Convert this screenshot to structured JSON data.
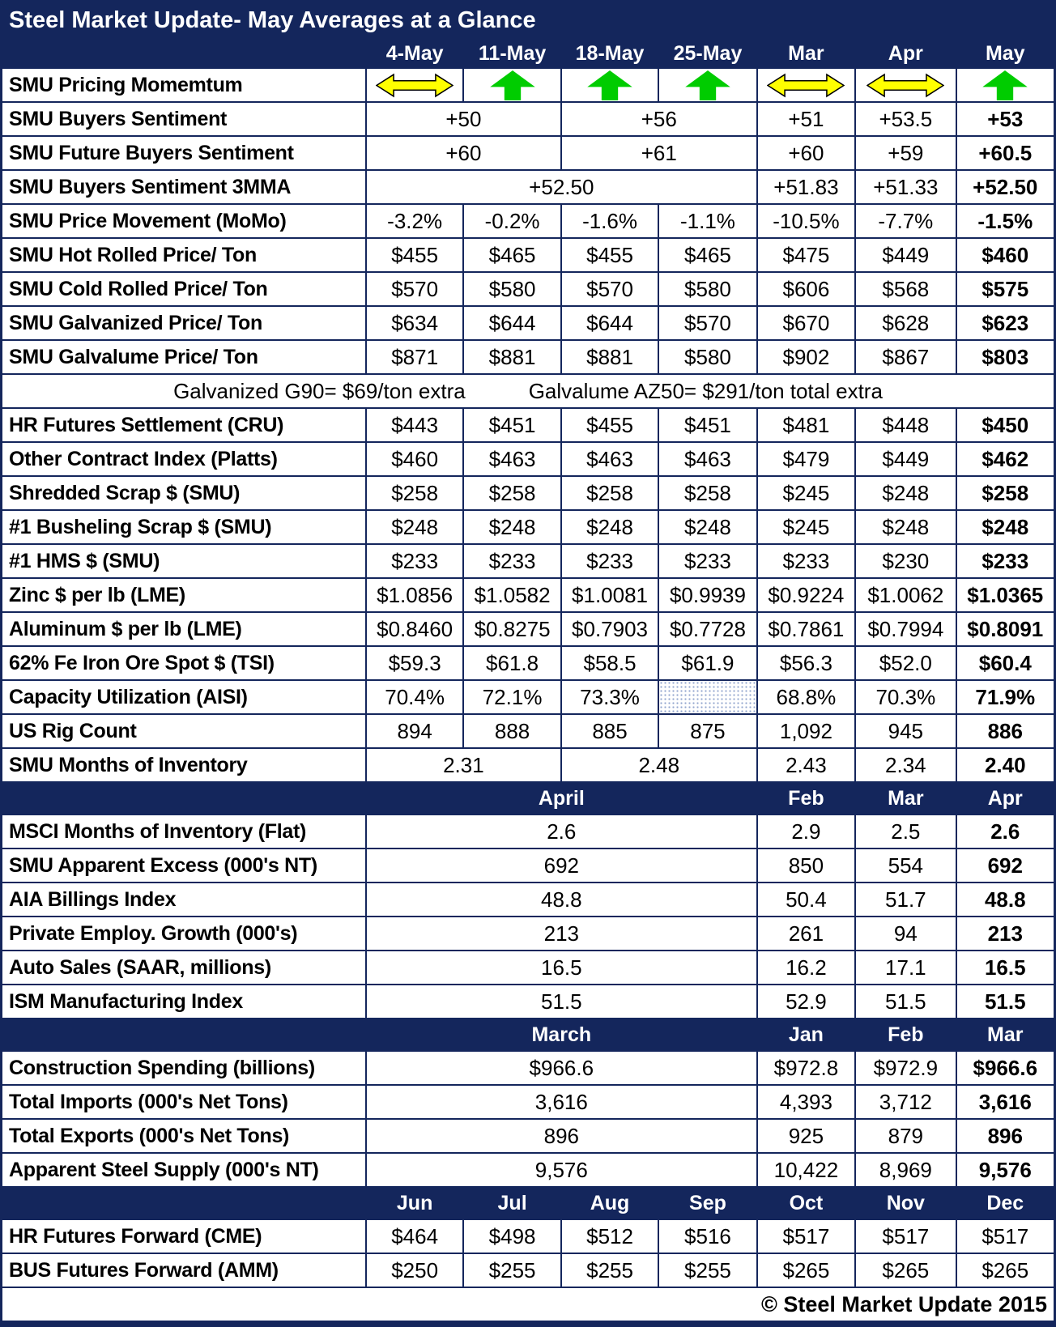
{
  "colors": {
    "navy": "#14265C",
    "green": "#00CC00",
    "yellow": "#FFFF00",
    "hatch_dot": "#8fa3cc",
    "text": "#000000",
    "header_text": "#FFFFFF"
  },
  "chart_data": {
    "type": "table",
    "title": "Steel Market Update- May Averages at a Glance",
    "footer": "© Steel Market Update 2015",
    "note_row": [
      "Galvanized G90= $69/ton extra",
      "Galvalume AZ50= $291/ton total extra"
    ],
    "arrow_legend": {
      "up": "green up arrow (rising)",
      "sideways": "yellow double-headed arrow (flat)"
    },
    "rows": [
      {
        "kind": "colheader",
        "cells": [
          {
            "v": "4-May"
          },
          {
            "v": "11-May"
          },
          {
            "v": "18-May"
          },
          {
            "v": "25-May"
          },
          {
            "v": "Mar"
          },
          {
            "v": "Apr"
          },
          {
            "v": "May"
          }
        ]
      },
      {
        "kind": "arrows",
        "label": "SMU Pricing Momemtum",
        "cells": [
          {
            "arrow": "sideways"
          },
          {
            "arrow": "up"
          },
          {
            "arrow": "up"
          },
          {
            "arrow": "up"
          },
          {
            "arrow": "sideways"
          },
          {
            "arrow": "sideways"
          },
          {
            "arrow": "up"
          }
        ]
      },
      {
        "kind": "data",
        "label": "SMU Buyers Sentiment",
        "cells": [
          {
            "v": "+50",
            "span": 2
          },
          {
            "v": "+56",
            "span": 2
          },
          {
            "v": "+51"
          },
          {
            "v": "+53.5"
          },
          {
            "v": "+53",
            "bold": true
          }
        ]
      },
      {
        "kind": "data",
        "label": "SMU Future Buyers Sentiment",
        "cells": [
          {
            "v": "+60",
            "span": 2
          },
          {
            "v": "+61",
            "span": 2
          },
          {
            "v": "+60"
          },
          {
            "v": "+59"
          },
          {
            "v": "+60.5",
            "bold": true
          }
        ]
      },
      {
        "kind": "data",
        "label": "SMU Buyers Sentiment 3MMA",
        "cells": [
          {
            "v": "+52.50",
            "span": 4
          },
          {
            "v": "+51.83"
          },
          {
            "v": "+51.33"
          },
          {
            "v": "+52.50",
            "bold": true
          }
        ]
      },
      {
        "kind": "data",
        "label": "SMU Price Movement (MoMo)",
        "cells": [
          {
            "v": "-3.2%"
          },
          {
            "v": "-0.2%"
          },
          {
            "v": "-1.6%"
          },
          {
            "v": "-1.1%"
          },
          {
            "v": "-10.5%"
          },
          {
            "v": "-7.7%"
          },
          {
            "v": "-1.5%",
            "bold": true
          }
        ]
      },
      {
        "kind": "data",
        "label": "SMU Hot Rolled Price/ Ton",
        "cells": [
          {
            "v": "$455"
          },
          {
            "v": "$465"
          },
          {
            "v": "$455"
          },
          {
            "v": "$465"
          },
          {
            "v": "$475"
          },
          {
            "v": "$449"
          },
          {
            "v": "$460",
            "bold": true
          }
        ]
      },
      {
        "kind": "data",
        "label": "SMU Cold Rolled Price/ Ton",
        "cells": [
          {
            "v": "$570"
          },
          {
            "v": "$580"
          },
          {
            "v": "$570"
          },
          {
            "v": "$580"
          },
          {
            "v": "$606"
          },
          {
            "v": "$568"
          },
          {
            "v": "$575",
            "bold": true
          }
        ]
      },
      {
        "kind": "data",
        "label": "SMU Galvanized Price/ Ton",
        "cells": [
          {
            "v": "$634"
          },
          {
            "v": "$644"
          },
          {
            "v": "$644"
          },
          {
            "v": "$570"
          },
          {
            "v": "$670"
          },
          {
            "v": "$628"
          },
          {
            "v": "$623",
            "bold": true
          }
        ]
      },
      {
        "kind": "data",
        "label": "SMU Galvalume Price/ Ton",
        "cells": [
          {
            "v": "$871"
          },
          {
            "v": "$881"
          },
          {
            "v": "$881"
          },
          {
            "v": "$580"
          },
          {
            "v": "$902"
          },
          {
            "v": "$867"
          },
          {
            "v": "$803",
            "bold": true
          }
        ]
      },
      {
        "kind": "note"
      },
      {
        "kind": "data",
        "label": "HR Futures Settlement (CRU)",
        "cells": [
          {
            "v": "$443"
          },
          {
            "v": "$451"
          },
          {
            "v": "$455"
          },
          {
            "v": "$451"
          },
          {
            "v": "$481"
          },
          {
            "v": "$448"
          },
          {
            "v": "$450",
            "bold": true
          }
        ]
      },
      {
        "kind": "data",
        "label": "Other Contract Index (Platts)",
        "cells": [
          {
            "v": "$460"
          },
          {
            "v": "$463"
          },
          {
            "v": "$463"
          },
          {
            "v": "$463"
          },
          {
            "v": "$479"
          },
          {
            "v": "$449"
          },
          {
            "v": "$462",
            "bold": true
          }
        ]
      },
      {
        "kind": "data",
        "label": "Shredded Scrap $ (SMU)",
        "cells": [
          {
            "v": "$258"
          },
          {
            "v": "$258"
          },
          {
            "v": "$258"
          },
          {
            "v": "$258"
          },
          {
            "v": "$245"
          },
          {
            "v": "$248"
          },
          {
            "v": "$258",
            "bold": true
          }
        ]
      },
      {
        "kind": "data",
        "label": "#1 Busheling Scrap $ (SMU)",
        "cells": [
          {
            "v": "$248"
          },
          {
            "v": "$248"
          },
          {
            "v": "$248"
          },
          {
            "v": "$248"
          },
          {
            "v": "$245"
          },
          {
            "v": "$248"
          },
          {
            "v": "$248",
            "bold": true
          }
        ]
      },
      {
        "kind": "data",
        "label": "#1 HMS $ (SMU)",
        "cells": [
          {
            "v": "$233"
          },
          {
            "v": "$233"
          },
          {
            "v": "$233"
          },
          {
            "v": "$233"
          },
          {
            "v": "$233"
          },
          {
            "v": "$230"
          },
          {
            "v": "$233",
            "bold": true
          }
        ]
      },
      {
        "kind": "data",
        "label": "Zinc $ per lb (LME)",
        "cells": [
          {
            "v": "$1.0856"
          },
          {
            "v": "$1.0582"
          },
          {
            "v": "$1.0081"
          },
          {
            "v": "$0.9939"
          },
          {
            "v": "$0.9224"
          },
          {
            "v": "$1.0062"
          },
          {
            "v": "$1.0365",
            "bold": true
          }
        ]
      },
      {
        "kind": "data",
        "label": "Aluminum $ per lb (LME)",
        "cells": [
          {
            "v": "$0.8460"
          },
          {
            "v": "$0.8275"
          },
          {
            "v": "$0.7903"
          },
          {
            "v": "$0.7728"
          },
          {
            "v": "$0.7861"
          },
          {
            "v": "$0.7994"
          },
          {
            "v": "$0.8091",
            "bold": true
          }
        ]
      },
      {
        "kind": "data",
        "label": "62% Fe Iron Ore Spot $ (TSI)",
        "cells": [
          {
            "v": "$59.3"
          },
          {
            "v": "$61.8"
          },
          {
            "v": "$58.5"
          },
          {
            "v": "$61.9"
          },
          {
            "v": "$56.3"
          },
          {
            "v": "$52.0"
          },
          {
            "v": "$60.4",
            "bold": true
          }
        ]
      },
      {
        "kind": "data",
        "label": "Capacity Utilization (AISI)",
        "cells": [
          {
            "v": "70.4%"
          },
          {
            "v": "72.1%"
          },
          {
            "v": "73.3%"
          },
          {
            "v": "",
            "hatch": true
          },
          {
            "v": "68.8%"
          },
          {
            "v": "70.3%"
          },
          {
            "v": "71.9%",
            "bold": true
          }
        ]
      },
      {
        "kind": "data",
        "label": "US Rig Count",
        "cells": [
          {
            "v": "894"
          },
          {
            "v": "888"
          },
          {
            "v": "885"
          },
          {
            "v": "875"
          },
          {
            "v": "1,092"
          },
          {
            "v": "945"
          },
          {
            "v": "886",
            "bold": true
          }
        ]
      },
      {
        "kind": "data",
        "label": "SMU Months of Inventory",
        "cells": [
          {
            "v": "2.31",
            "span": 2
          },
          {
            "v": "2.48",
            "span": 2
          },
          {
            "v": "2.43"
          },
          {
            "v": "2.34"
          },
          {
            "v": "2.40",
            "bold": true
          }
        ]
      },
      {
        "kind": "sectionheader",
        "cells": [
          {
            "v": "April",
            "span": 4
          },
          {
            "v": "Feb"
          },
          {
            "v": "Mar"
          },
          {
            "v": "Apr"
          }
        ]
      },
      {
        "kind": "data",
        "label": "MSCI Months of Inventory (Flat)",
        "cells": [
          {
            "v": "2.6",
            "span": 4
          },
          {
            "v": "2.9"
          },
          {
            "v": "2.5"
          },
          {
            "v": "2.6",
            "bold": true
          }
        ]
      },
      {
        "kind": "data",
        "label": "SMU Apparent Excess (000's NT)",
        "cells": [
          {
            "v": "692",
            "span": 4
          },
          {
            "v": "850"
          },
          {
            "v": "554"
          },
          {
            "v": "692",
            "bold": true
          }
        ]
      },
      {
        "kind": "data",
        "label": "AIA Billings Index",
        "cells": [
          {
            "v": "48.8",
            "span": 4
          },
          {
            "v": "50.4"
          },
          {
            "v": "51.7"
          },
          {
            "v": "48.8",
            "bold": true
          }
        ]
      },
      {
        "kind": "data",
        "label": "Private Employ. Growth (000's)",
        "cells": [
          {
            "v": "213",
            "span": 4
          },
          {
            "v": "261"
          },
          {
            "v": "94"
          },
          {
            "v": "213",
            "bold": true
          }
        ]
      },
      {
        "kind": "data",
        "label": "Auto Sales (SAAR, millions)",
        "cells": [
          {
            "v": "16.5",
            "span": 4
          },
          {
            "v": "16.2"
          },
          {
            "v": "17.1"
          },
          {
            "v": "16.5",
            "bold": true
          }
        ]
      },
      {
        "kind": "data",
        "label": "ISM Manufacturing Index",
        "cells": [
          {
            "v": "51.5",
            "span": 4
          },
          {
            "v": "52.9"
          },
          {
            "v": "51.5"
          },
          {
            "v": "51.5",
            "bold": true
          }
        ]
      },
      {
        "kind": "sectionheader",
        "cells": [
          {
            "v": "March",
            "span": 4
          },
          {
            "v": "Jan"
          },
          {
            "v": "Feb"
          },
          {
            "v": "Mar"
          }
        ]
      },
      {
        "kind": "data",
        "label": "Construction Spending (billions)",
        "cells": [
          {
            "v": "$966.6",
            "span": 4
          },
          {
            "v": "$972.8"
          },
          {
            "v": "$972.9"
          },
          {
            "v": "$966.6",
            "bold": true
          }
        ]
      },
      {
        "kind": "data",
        "label": "Total Imports (000's Net Tons)",
        "cells": [
          {
            "v": "3,616",
            "span": 4
          },
          {
            "v": "4,393"
          },
          {
            "v": "3,712"
          },
          {
            "v": "3,616",
            "bold": true
          }
        ]
      },
      {
        "kind": "data",
        "label": "Total Exports (000's Net Tons)",
        "cells": [
          {
            "v": "896",
            "span": 4
          },
          {
            "v": "925"
          },
          {
            "v": "879"
          },
          {
            "v": "896",
            "bold": true
          }
        ]
      },
      {
        "kind": "data",
        "label": "Apparent Steel Supply (000's NT)",
        "cells": [
          {
            "v": "9,576",
            "span": 4
          },
          {
            "v": "10,422"
          },
          {
            "v": "8,969"
          },
          {
            "v": "9,576",
            "bold": true
          }
        ]
      },
      {
        "kind": "sectionheader",
        "cells": [
          {
            "v": "Jun"
          },
          {
            "v": "Jul"
          },
          {
            "v": "Aug"
          },
          {
            "v": "Sep"
          },
          {
            "v": "Oct"
          },
          {
            "v": "Nov"
          },
          {
            "v": "Dec"
          }
        ]
      },
      {
        "kind": "data",
        "label": "HR Futures Forward (CME)",
        "cells": [
          {
            "v": "$464"
          },
          {
            "v": "$498"
          },
          {
            "v": "$512"
          },
          {
            "v": "$516"
          },
          {
            "v": "$517"
          },
          {
            "v": "$517"
          },
          {
            "v": "$517"
          }
        ]
      },
      {
        "kind": "data",
        "label": "BUS Futures Forward (AMM)",
        "cells": [
          {
            "v": "$250"
          },
          {
            "v": "$255"
          },
          {
            "v": "$255"
          },
          {
            "v": "$255"
          },
          {
            "v": "$265"
          },
          {
            "v": "$265"
          },
          {
            "v": "$265"
          }
        ]
      }
    ]
  }
}
